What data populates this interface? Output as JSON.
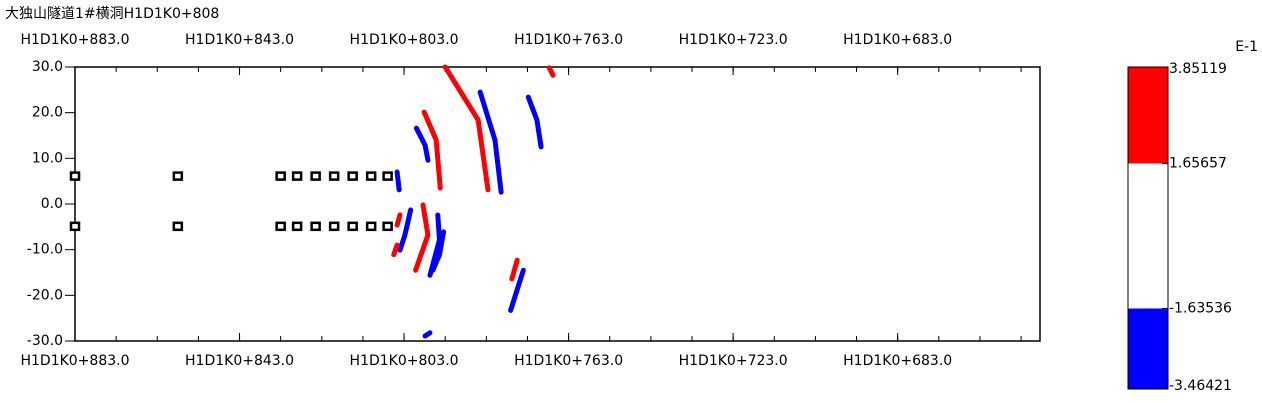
{
  "chart_data": {
    "type": "reflector-map",
    "title": "大独山隧道1#横洞H1D1K0+808",
    "xlim": [
      883,
      648.4
    ],
    "xticks": [
      {
        "value": 883,
        "label": "H1D1K0+883.0"
      },
      {
        "value": 843,
        "label": "H1D1K0+843.0"
      },
      {
        "value": 803,
        "label": "H1D1K0+803.0"
      },
      {
        "value": 763,
        "label": "H1D1K0+763.0"
      },
      {
        "value": 723,
        "label": "H1D1K0+723.0"
      },
      {
        "value": 683,
        "label": "H1D1K0+683.0"
      }
    ],
    "ylim": [
      -30,
      30
    ],
    "yticks": [
      {
        "value": 30,
        "label": "30.0"
      },
      {
        "value": 20,
        "label": "20.0"
      },
      {
        "value": 10,
        "label": "10.0"
      },
      {
        "value": 0,
        "label": "0.0"
      },
      {
        "value": -10,
        "label": "-10.0"
      },
      {
        "value": -20,
        "label": "-20.0"
      },
      {
        "value": -30,
        "label": "-30.0"
      }
    ],
    "markers": {
      "x": [
        883,
        858,
        833,
        829,
        824.5,
        820,
        815.5,
        811,
        807,
        883,
        858,
        833,
        829,
        824.5,
        820,
        815.5,
        811,
        807
      ],
      "y": [
        6,
        6,
        6,
        6,
        6,
        6,
        6,
        6,
        6,
        -5,
        -5,
        -5,
        -5,
        -5,
        -5,
        -5,
        -5,
        -5
      ]
    },
    "series": [
      {
        "color": "#ff0000",
        "x": [
          793.0,
          785.0,
          782.6
        ],
        "y": [
          30,
          18.4,
          3.1
        ]
      },
      {
        "color": "#0000ff",
        "x": [
          784.5,
          780.9,
          779.4
        ],
        "y": [
          24.5,
          14.0,
          2.6
        ]
      },
      {
        "color": "#0000ff",
        "x": [
          772.8,
          770.7,
          769.7
        ],
        "y": [
          23.4,
          18.4,
          12.5
        ]
      },
      {
        "color": "#ff0000",
        "x": [
          767.7,
          766.8
        ],
        "y": [
          29.8,
          28.2
        ]
      },
      {
        "color": "#ff0000",
        "x": [
          798.1,
          795.2,
          794.2
        ],
        "y": [
          20.1,
          14.0,
          3.5
        ]
      },
      {
        "color": "#0000ff",
        "x": [
          800.0,
          797.9,
          797.2
        ],
        "y": [
          16.6,
          12.9,
          9.6
        ]
      },
      {
        "color": "#0000ff",
        "x": [
          804.7,
          804.2
        ],
        "y": [
          7.0,
          3.1
        ]
      },
      {
        "color": "#0000ff",
        "x": [
          801.4,
          802.8,
          804.0
        ],
        "y": [
          -1.3,
          -6.8,
          -10.1
        ]
      },
      {
        "color": "#ff0000",
        "x": [
          798.4,
          797.2,
          800.2
        ],
        "y": [
          -0.2,
          -6.8,
          -14.5
        ]
      },
      {
        "color": "#0000ff",
        "x": [
          794.8,
          794.4,
          796.7
        ],
        "y": [
          -2.4,
          -7.9,
          -15.6
        ]
      },
      {
        "color": "#0000ff",
        "x": [
          793.4,
          794.4,
          796.0
        ],
        "y": [
          -6.1,
          -11.1,
          -14.5
        ]
      },
      {
        "color": "#ff0000",
        "x": [
          804.0,
          804.7
        ],
        "y": [
          -2.4,
          -4.6
        ]
      },
      {
        "color": "#ff0000",
        "x": [
          804.7,
          805.5
        ],
        "y": [
          -9.0,
          -11.1
        ]
      },
      {
        "color": "#ff0000",
        "x": [
          775.5,
          776.8
        ],
        "y": [
          -12.3,
          -16.4
        ]
      },
      {
        "color": "#0000ff",
        "x": [
          774.0,
          777.1
        ],
        "y": [
          -14.5,
          -23.3
        ]
      },
      {
        "color": "#0000ff",
        "x": [
          796.7,
          797.9
        ],
        "y": [
          -28.2,
          -28.9
        ]
      }
    ],
    "colorbar": {
      "unit": "E-1",
      "levels": [
        3.85119,
        1.65657,
        -1.63536,
        -3.46421
      ],
      "colors": [
        "#ff0000",
        "#ffffff",
        "#0000ff"
      ]
    }
  }
}
